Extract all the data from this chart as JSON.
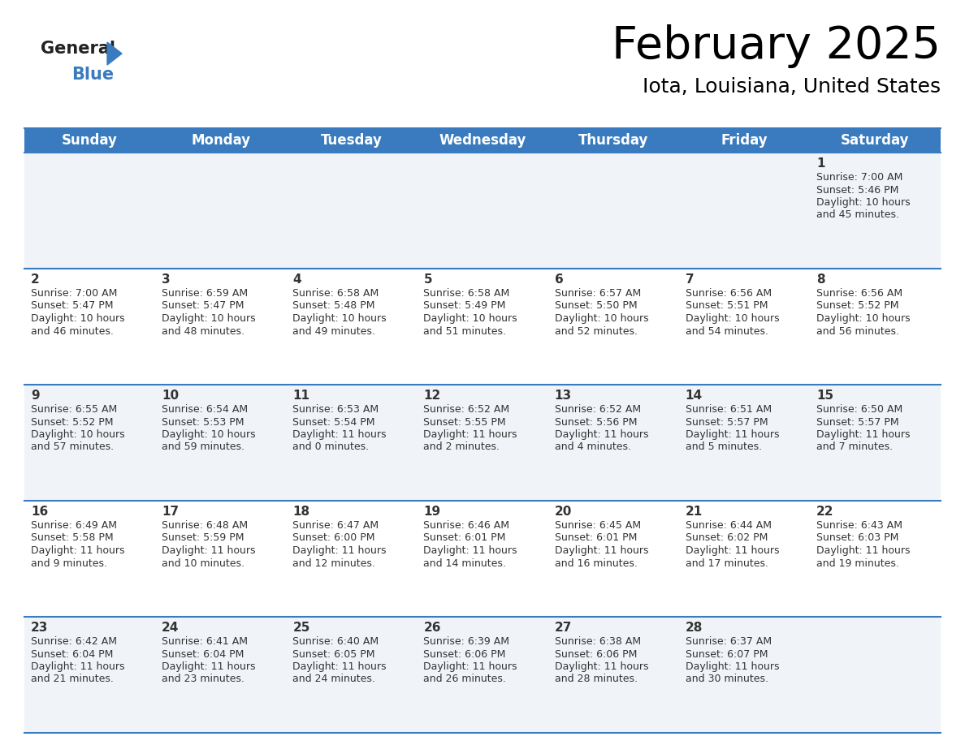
{
  "title": "February 2025",
  "subtitle": "Iota, Louisiana, United States",
  "header_color": "#3a7bbf",
  "header_text_color": "#ffffff",
  "cell_bg_even": "#f0f4f8",
  "cell_bg_odd": "#ffffff",
  "border_color": "#3a7bbf",
  "text_color": "#333333",
  "day_headers": [
    "Sunday",
    "Monday",
    "Tuesday",
    "Wednesday",
    "Thursday",
    "Friday",
    "Saturday"
  ],
  "days": [
    {
      "day": 1,
      "col": 6,
      "row": 0,
      "sunrise": "7:00 AM",
      "sunset": "5:46 PM",
      "daylight": "10 hours and 45 minutes."
    },
    {
      "day": 2,
      "col": 0,
      "row": 1,
      "sunrise": "7:00 AM",
      "sunset": "5:47 PM",
      "daylight": "10 hours and 46 minutes."
    },
    {
      "day": 3,
      "col": 1,
      "row": 1,
      "sunrise": "6:59 AM",
      "sunset": "5:47 PM",
      "daylight": "10 hours and 48 minutes."
    },
    {
      "day": 4,
      "col": 2,
      "row": 1,
      "sunrise": "6:58 AM",
      "sunset": "5:48 PM",
      "daylight": "10 hours and 49 minutes."
    },
    {
      "day": 5,
      "col": 3,
      "row": 1,
      "sunrise": "6:58 AM",
      "sunset": "5:49 PM",
      "daylight": "10 hours and 51 minutes."
    },
    {
      "day": 6,
      "col": 4,
      "row": 1,
      "sunrise": "6:57 AM",
      "sunset": "5:50 PM",
      "daylight": "10 hours and 52 minutes."
    },
    {
      "day": 7,
      "col": 5,
      "row": 1,
      "sunrise": "6:56 AM",
      "sunset": "5:51 PM",
      "daylight": "10 hours and 54 minutes."
    },
    {
      "day": 8,
      "col": 6,
      "row": 1,
      "sunrise": "6:56 AM",
      "sunset": "5:52 PM",
      "daylight": "10 hours and 56 minutes."
    },
    {
      "day": 9,
      "col": 0,
      "row": 2,
      "sunrise": "6:55 AM",
      "sunset": "5:52 PM",
      "daylight": "10 hours and 57 minutes."
    },
    {
      "day": 10,
      "col": 1,
      "row": 2,
      "sunrise": "6:54 AM",
      "sunset": "5:53 PM",
      "daylight": "10 hours and 59 minutes."
    },
    {
      "day": 11,
      "col": 2,
      "row": 2,
      "sunrise": "6:53 AM",
      "sunset": "5:54 PM",
      "daylight": "11 hours and 0 minutes."
    },
    {
      "day": 12,
      "col": 3,
      "row": 2,
      "sunrise": "6:52 AM",
      "sunset": "5:55 PM",
      "daylight": "11 hours and 2 minutes."
    },
    {
      "day": 13,
      "col": 4,
      "row": 2,
      "sunrise": "6:52 AM",
      "sunset": "5:56 PM",
      "daylight": "11 hours and 4 minutes."
    },
    {
      "day": 14,
      "col": 5,
      "row": 2,
      "sunrise": "6:51 AM",
      "sunset": "5:57 PM",
      "daylight": "11 hours and 5 minutes."
    },
    {
      "day": 15,
      "col": 6,
      "row": 2,
      "sunrise": "6:50 AM",
      "sunset": "5:57 PM",
      "daylight": "11 hours and 7 minutes."
    },
    {
      "day": 16,
      "col": 0,
      "row": 3,
      "sunrise": "6:49 AM",
      "sunset": "5:58 PM",
      "daylight": "11 hours and 9 minutes."
    },
    {
      "day": 17,
      "col": 1,
      "row": 3,
      "sunrise": "6:48 AM",
      "sunset": "5:59 PM",
      "daylight": "11 hours and 10 minutes."
    },
    {
      "day": 18,
      "col": 2,
      "row": 3,
      "sunrise": "6:47 AM",
      "sunset": "6:00 PM",
      "daylight": "11 hours and 12 minutes."
    },
    {
      "day": 19,
      "col": 3,
      "row": 3,
      "sunrise": "6:46 AM",
      "sunset": "6:01 PM",
      "daylight": "11 hours and 14 minutes."
    },
    {
      "day": 20,
      "col": 4,
      "row": 3,
      "sunrise": "6:45 AM",
      "sunset": "6:01 PM",
      "daylight": "11 hours and 16 minutes."
    },
    {
      "day": 21,
      "col": 5,
      "row": 3,
      "sunrise": "6:44 AM",
      "sunset": "6:02 PM",
      "daylight": "11 hours and 17 minutes."
    },
    {
      "day": 22,
      "col": 6,
      "row": 3,
      "sunrise": "6:43 AM",
      "sunset": "6:03 PM",
      "daylight": "11 hours and 19 minutes."
    },
    {
      "day": 23,
      "col": 0,
      "row": 4,
      "sunrise": "6:42 AM",
      "sunset": "6:04 PM",
      "daylight": "11 hours and 21 minutes."
    },
    {
      "day": 24,
      "col": 1,
      "row": 4,
      "sunrise": "6:41 AM",
      "sunset": "6:04 PM",
      "daylight": "11 hours and 23 minutes."
    },
    {
      "day": 25,
      "col": 2,
      "row": 4,
      "sunrise": "6:40 AM",
      "sunset": "6:05 PM",
      "daylight": "11 hours and 24 minutes."
    },
    {
      "day": 26,
      "col": 3,
      "row": 4,
      "sunrise": "6:39 AM",
      "sunset": "6:06 PM",
      "daylight": "11 hours and 26 minutes."
    },
    {
      "day": 27,
      "col": 4,
      "row": 4,
      "sunrise": "6:38 AM",
      "sunset": "6:06 PM",
      "daylight": "11 hours and 28 minutes."
    },
    {
      "day": 28,
      "col": 5,
      "row": 4,
      "sunrise": "6:37 AM",
      "sunset": "6:07 PM",
      "daylight": "11 hours and 30 minutes."
    }
  ],
  "num_rows": 5,
  "num_cols": 7,
  "logo_general_color": "#222222",
  "logo_blue_color": "#3a7bbf",
  "logo_triangle_color": "#3a7bbf",
  "title_fontsize": 40,
  "subtitle_fontsize": 18,
  "day_header_fontsize": 12,
  "day_num_fontsize": 11,
  "cell_text_fontsize": 9
}
